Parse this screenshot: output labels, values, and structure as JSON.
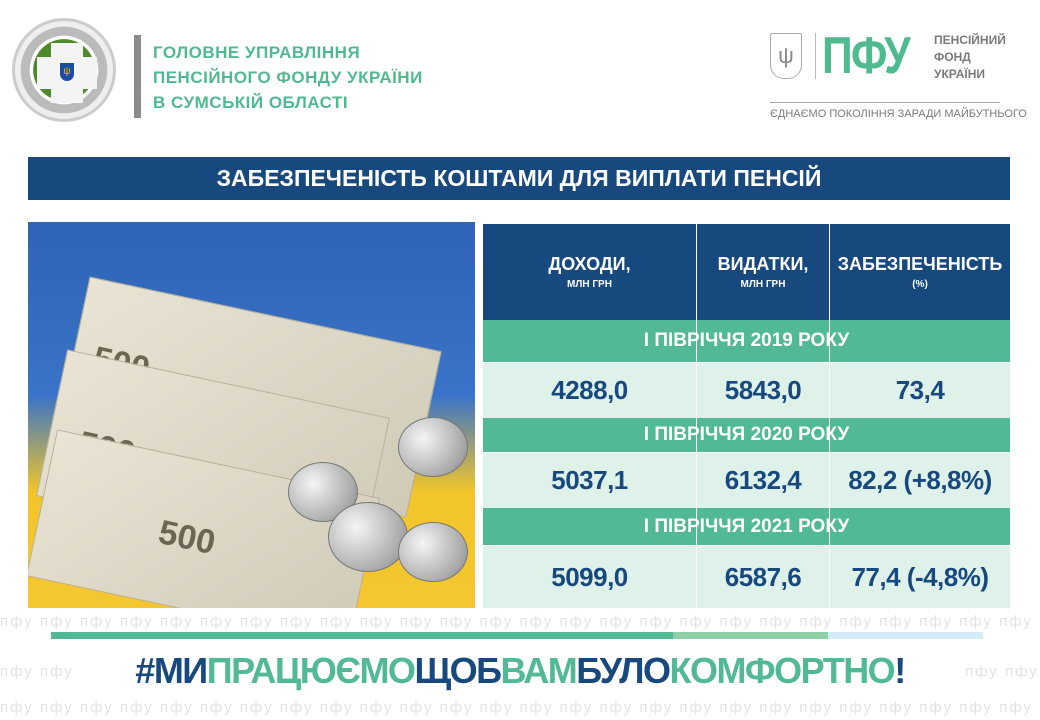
{
  "header": {
    "org_lines": [
      "ГОЛОВНЕ УПРАВЛІННЯ",
      "ПЕНСІЙНОГО ФОНДУ УКРАЇНИ",
      "В СУМСЬКІЙ  ОБЛАСТІ"
    ],
    "brand_logo": "ПФУ",
    "brand_lines": [
      "ПЕНСІЙНИЙ",
      "ФОНД",
      "УКРАЇНИ"
    ],
    "slogan": "ЄДНАЄМО ПОКОЛІННЯ ЗАРАДИ МАЙБУТНЬОГО"
  },
  "title": "ЗАБЕЗПЕЧЕНІСТЬ КОШТАМИ ДЛЯ ВИПЛАТИ ПЕНСІЙ",
  "photo": {
    "banknote_value": "500"
  },
  "table": {
    "columns": [
      {
        "label": "ДОХОДИ,",
        "unit": "МЛН ГРН"
      },
      {
        "label": "ВИДАТКИ,",
        "unit": "МЛН ГРН"
      },
      {
        "label": "ЗАБЕЗПЕЧЕНІСТЬ",
        "unit": "(%)"
      }
    ],
    "periods": [
      {
        "label": "І  ПІВРІЧЧЯ 2019 РОКУ",
        "values": [
          "4288,0",
          "5843,0",
          "73,4"
        ]
      },
      {
        "label": "І  ПІВРІЧЧЯ 2020 РОКУ",
        "values": [
          "5037,1",
          "6132,4",
          "82,2 (+8,8%)"
        ]
      },
      {
        "label": "І  ПІВРІЧЧЯ 2021 РОКУ",
        "values": [
          "5099,0",
          "6587,6",
          "77,4 (-4,8%)"
        ]
      }
    ]
  },
  "footer": {
    "watermark": "пфу",
    "hashtag": [
      {
        "text": "#МИ",
        "color": "#17497f"
      },
      {
        "text": "ПРАЦЮЄМО",
        "color": "#52b995"
      },
      {
        "text": "ЩОБ",
        "color": "#17497f"
      },
      {
        "text": "ВАМ",
        "color": "#52b995"
      },
      {
        "text": "БУЛО",
        "color": "#17497f"
      },
      {
        "text": "КОМФОРТНО",
        "color": "#52b995"
      },
      {
        "text": "!",
        "color": "#17497f"
      }
    ]
  },
  "colors": {
    "navy": "#17497f",
    "green": "#52b995",
    "light_green": "#dff2ea"
  }
}
